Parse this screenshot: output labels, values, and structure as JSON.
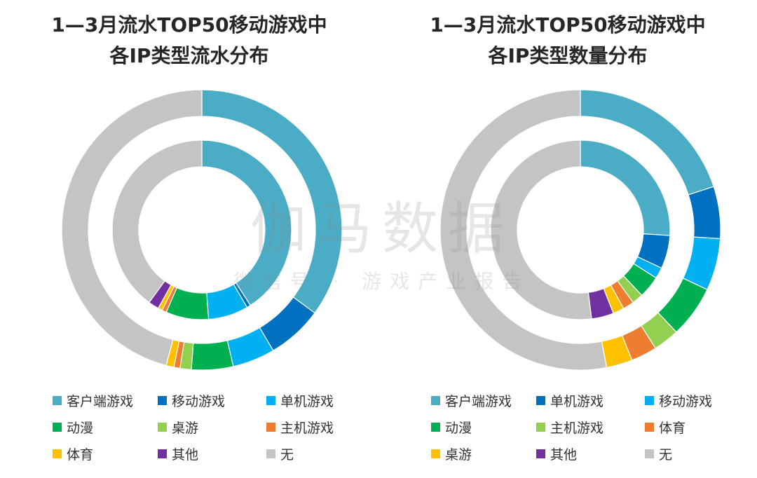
{
  "watermark": {
    "main": "伽马数据",
    "sub": "微信号 · 游戏产业报告"
  },
  "chart_data": [
    {
      "type": "donut",
      "title_lines": [
        "1—3月流水TOP50移动游戏中",
        "各IP类型流水分布"
      ],
      "legend_placement": "bottom",
      "legend_order": [
        "客户端游戏",
        "移动游戏",
        "单机游戏",
        "动漫",
        "桌游",
        "主机游戏",
        "体育",
        "其他",
        "无"
      ],
      "categories": [
        "客户端游戏",
        "移动游戏",
        "单机游戏",
        "动漫",
        "桌游",
        "主机游戏",
        "体育",
        "其他",
        "无"
      ],
      "colors": [
        "#4bacc6",
        "#0070c0",
        "#00b0f0",
        "#00b050",
        "#92d050",
        "#ed7d31",
        "#ffc000",
        "#7030a0",
        "#c4c4c4"
      ],
      "rings": [
        {
          "name": "outer",
          "values": [
            35.1,
            6.4,
            4.9,
            4.8,
            1.3,
            0.7,
            0.9,
            0,
            45.9
          ]
        },
        {
          "name": "inner",
          "values": [
            40.9,
            0.7,
            7.2,
            7.7,
            0,
            0.8,
            0.8,
            1.9,
            40
          ]
        }
      ]
    },
    {
      "type": "donut",
      "title_lines": [
        "1—3月流水TOP50移动游戏中",
        "各IP类型数量分布"
      ],
      "legend_placement": "bottom",
      "legend_order": [
        "客户端游戏",
        "单机游戏",
        "移动游戏",
        "动漫",
        "主机游戏",
        "体育",
        "桌游",
        "其他",
        "无"
      ],
      "categories": [
        "客户端游戏",
        "单机游戏",
        "移动游戏",
        "动漫",
        "主机游戏",
        "体育",
        "桌游",
        "其他",
        "无"
      ],
      "colors": [
        "#4bacc6",
        "#0070c0",
        "#00b0f0",
        "#00b050",
        "#92d050",
        "#ed7d31",
        "#ffc000",
        "#7030a0",
        "#c4c4c4"
      ],
      "rings": [
        {
          "name": "outer",
          "values": [
            20,
            6,
            6,
            6,
            3,
            3,
            3,
            0,
            53
          ]
        },
        {
          "name": "inner",
          "values": [
            26,
            6,
            2,
            4,
            2,
            2,
            2,
            4,
            52
          ]
        }
      ]
    }
  ]
}
